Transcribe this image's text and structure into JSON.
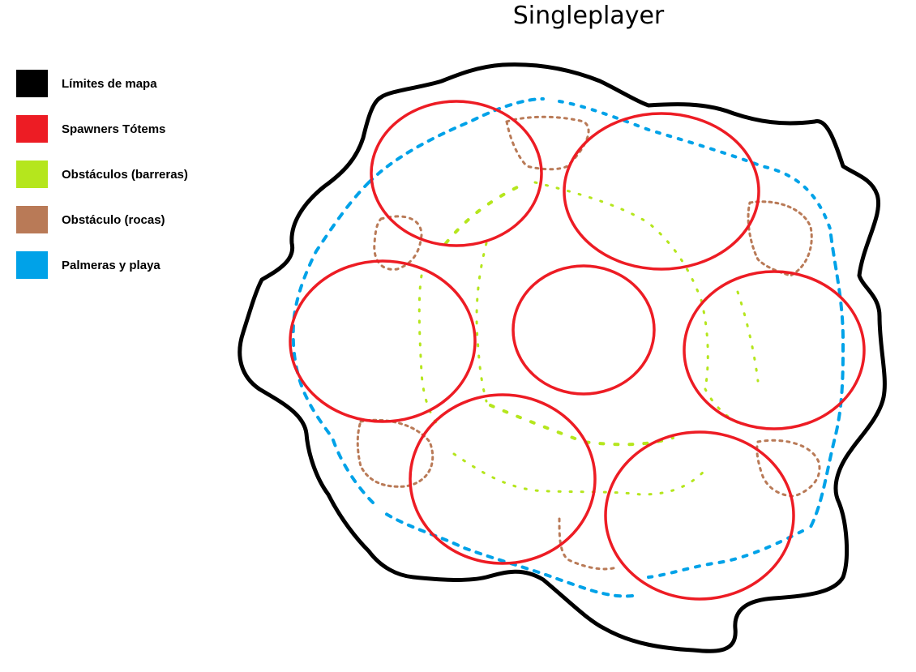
{
  "title": "Singleplayer",
  "legend": [
    {
      "label": "Límites de mapa",
      "color": "#000000",
      "icon": "black-swatch"
    },
    {
      "label": "Spawners Tótems",
      "color": "#ed1c24",
      "icon": "red-swatch"
    },
    {
      "label": "Obstáculos (barreras)",
      "color": "#b5e61d",
      "icon": "green-swatch"
    },
    {
      "label": "Obstáculo (rocas)",
      "color": "#b97a57",
      "icon": "brown-swatch"
    },
    {
      "label": "Palmeras y playa",
      "color": "#00a2e8",
      "icon": "blue-swatch"
    }
  ],
  "map": {
    "spawners_count": 7
  }
}
